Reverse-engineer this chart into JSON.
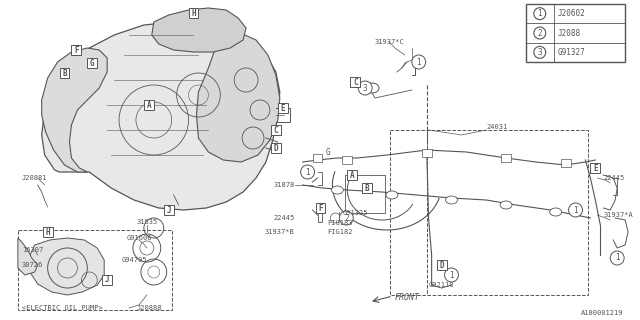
{
  "bg_color": "#ffffff",
  "line_color": "#555555",
  "text_color": "#555555",
  "diagram_id": "A180001219",
  "legend": [
    {
      "num": "1",
      "code": "J20602"
    },
    {
      "num": "2",
      "code": "J2088"
    },
    {
      "num": "3",
      "code": "G91327"
    }
  ],
  "figsize": [
    6.4,
    3.2
  ],
  "dpi": 100
}
